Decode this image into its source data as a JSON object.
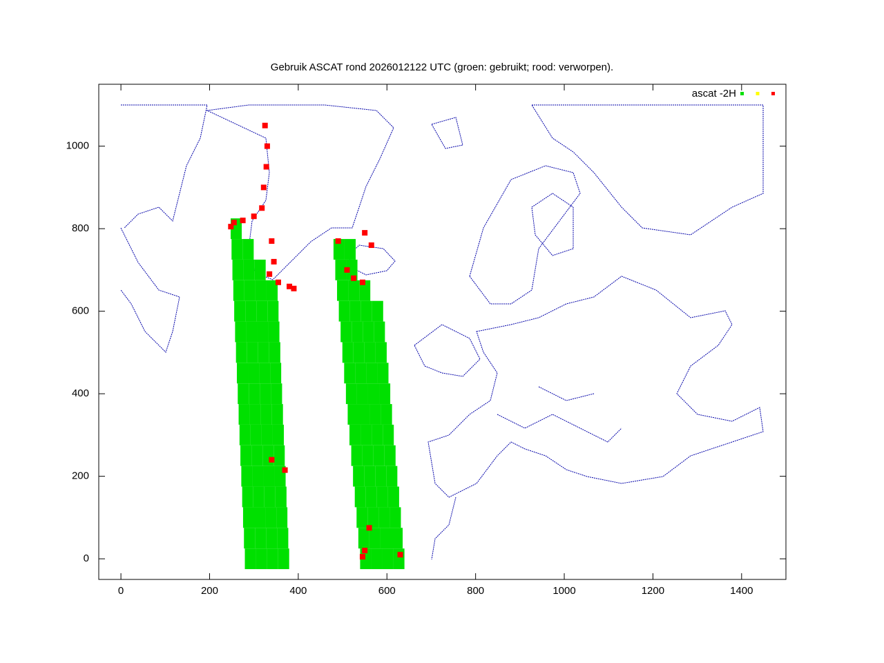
{
  "chart_data": {
    "type": "scatter",
    "title": "Gebruik ASCAT rond 2026012122 UTC (groen: gebruikt; rood: verworpen).",
    "legend_label": "ascat -2H",
    "legend": "top-right",
    "xlim": [
      -50,
      1500
    ],
    "ylim": [
      -50,
      1150
    ],
    "xticks": [
      0,
      200,
      400,
      600,
      800,
      1000,
      1200,
      1400
    ],
    "yticks": [
      0,
      200,
      400,
      600,
      800,
      1000
    ],
    "series": [
      {
        "color": "#00e000",
        "x": [
          292,
          317,
          342,
          367,
          290,
          315,
          340,
          365,
          288,
          313,
          338,
          363,
          286,
          311,
          336,
          361,
          284,
          309,
          334,
          359,
          282,
          307,
          332,
          357,
          280,
          305,
          330,
          355,
          278,
          303,
          328,
          353,
          276,
          301,
          326,
          351,
          274,
          299,
          324,
          349,
          272,
          297,
          322,
          347,
          270,
          295,
          320,
          345,
          268,
          293,
          318,
          343,
          266,
          291,
          316,
          341,
          264,
          289,
          314,
          262,
          287,
          260,
          552,
          577,
          602,
          627,
          548,
          573,
          598,
          623,
          544,
          569,
          594,
          619,
          540,
          565,
          590,
          615,
          536,
          561,
          586,
          611,
          532,
          557,
          582,
          607,
          528,
          553,
          578,
          603,
          524,
          549,
          574,
          599,
          520,
          545,
          570,
          595,
          516,
          541,
          566,
          591,
          512,
          537,
          562,
          587,
          508,
          533,
          558,
          583,
          504,
          529,
          554,
          579,
          500,
          525,
          550,
          496,
          521,
          492,
          517
        ],
        "y": [
          0,
          0,
          0,
          0,
          50,
          50,
          50,
          50,
          100,
          100,
          100,
          100,
          150,
          150,
          150,
          150,
          200,
          200,
          200,
          200,
          250,
          250,
          250,
          250,
          300,
          300,
          300,
          300,
          350,
          350,
          350,
          350,
          400,
          400,
          400,
          400,
          450,
          450,
          450,
          450,
          500,
          500,
          500,
          500,
          550,
          550,
          550,
          550,
          600,
          600,
          600,
          600,
          650,
          650,
          650,
          650,
          700,
          700,
          700,
          750,
          750,
          800,
          0,
          0,
          0,
          0,
          50,
          50,
          50,
          50,
          100,
          100,
          100,
          100,
          150,
          150,
          150,
          150,
          200,
          200,
          200,
          200,
          250,
          250,
          250,
          250,
          300,
          300,
          300,
          300,
          350,
          350,
          350,
          350,
          400,
          400,
          400,
          400,
          450,
          450,
          450,
          450,
          500,
          500,
          500,
          500,
          550,
          550,
          550,
          550,
          600,
          600,
          600,
          600,
          650,
          650,
          650,
          700,
          700,
          750,
          750
        ]
      },
      {
        "color": "#ffff00",
        "x": [],
        "y": []
      },
      {
        "color": "#ff0000",
        "x": [
          325,
          330,
          328,
          322,
          318,
          300,
          275,
          255,
          248,
          340,
          345,
          335,
          355,
          380,
          390,
          490,
          550,
          565,
          510,
          525,
          545,
          340,
          370,
          560,
          550,
          630,
          545
        ],
        "y": [
          1050,
          1000,
          950,
          900,
          850,
          830,
          820,
          815,
          805,
          770,
          720,
          690,
          670,
          660,
          655,
          770,
          790,
          760,
          700,
          680,
          670,
          240,
          215,
          75,
          20,
          10,
          5
        ]
      }
    ]
  }
}
